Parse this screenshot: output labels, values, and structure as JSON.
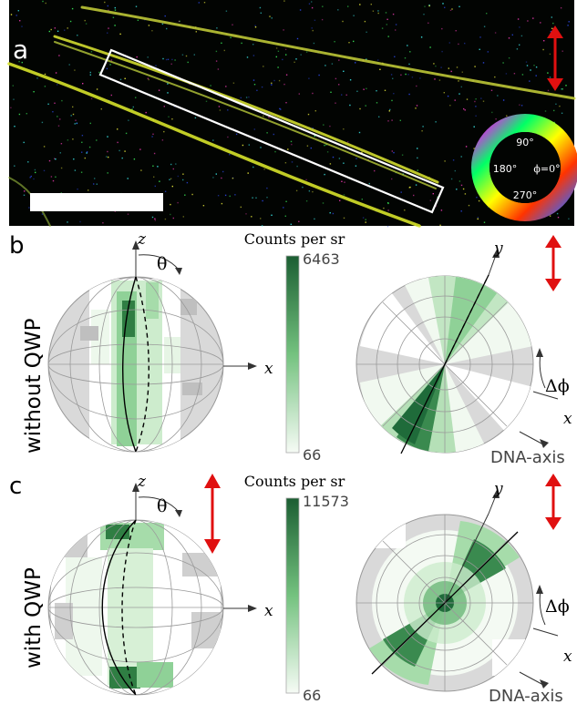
{
  "panel_a": {
    "label": "a",
    "color_wheel": {
      "angle_90": "90°",
      "angle_180": "180°",
      "angle_270": "270°",
      "angle_0": "ϕ=0°"
    }
  },
  "panel_b": {
    "label": "b",
    "side_label": "without QWP",
    "colorbar_title": "Counts per sr",
    "colorbar_max": "6463",
    "colorbar_min": "66",
    "axis_z": "z",
    "axis_x": "x",
    "axis_y": "y",
    "theta": "θ",
    "delta_phi": "Δϕ",
    "x_right": "x",
    "dna_axis": "DNA-axis"
  },
  "panel_c": {
    "label": "c",
    "side_label": "with QWP",
    "colorbar_title": "Counts per sr",
    "colorbar_max": "11573",
    "colorbar_min": "66",
    "axis_z": "z",
    "axis_x": "x",
    "axis_y": "y",
    "theta": "θ",
    "delta_phi": "Δϕ",
    "x_right": "x",
    "dna_axis": "DNA-axis"
  },
  "colors": {
    "arrow_red": "#e01010",
    "green_dark": "#1f6b3a",
    "green_light": "#eaf6ea",
    "grey_patch": "#d4d4d4"
  }
}
